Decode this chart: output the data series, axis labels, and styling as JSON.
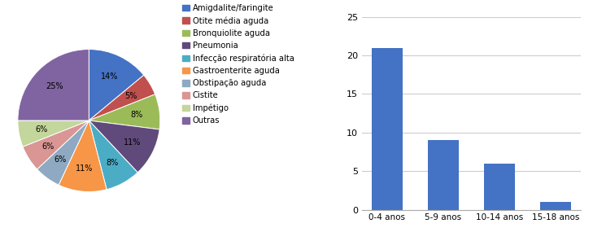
{
  "pie_labels": [
    "Amigdalite/faringite",
    "Otite média aguda",
    "Bronquiolite aguda",
    "Pneumonia",
    "Infecção respiratória alta",
    "Gastroenterite aguda",
    "Obstipação aguda",
    "Cistite",
    "Impétigo",
    "Outras"
  ],
  "pie_sizes": [
    14,
    5,
    8,
    11,
    8,
    11,
    6,
    6,
    6,
    25
  ],
  "pie_colors": [
    "#4472C4",
    "#C0504D",
    "#9BBB59",
    "#604A7B",
    "#4BACC6",
    "#F79646",
    "#8EA9C1",
    "#D99694",
    "#C3D69B",
    "#8064A2"
  ],
  "pie_pct_labels": [
    "14%",
    "5%",
    "8%",
    "11%",
    "8%",
    "11%",
    "6%",
    "6%",
    "6%",
    "25%"
  ],
  "bar_categories": [
    "0-4 anos",
    "5-9 anos",
    "10-14 anos",
    "15-18 anos"
  ],
  "bar_values": [
    21,
    9,
    6,
    1
  ],
  "bar_color": "#4472C4",
  "bar_ylim": [
    0,
    25
  ],
  "bar_yticks": [
    0,
    5,
    10,
    15,
    20,
    25
  ],
  "figsize": [
    7.29,
    2.96
  ],
  "dpi": 100
}
